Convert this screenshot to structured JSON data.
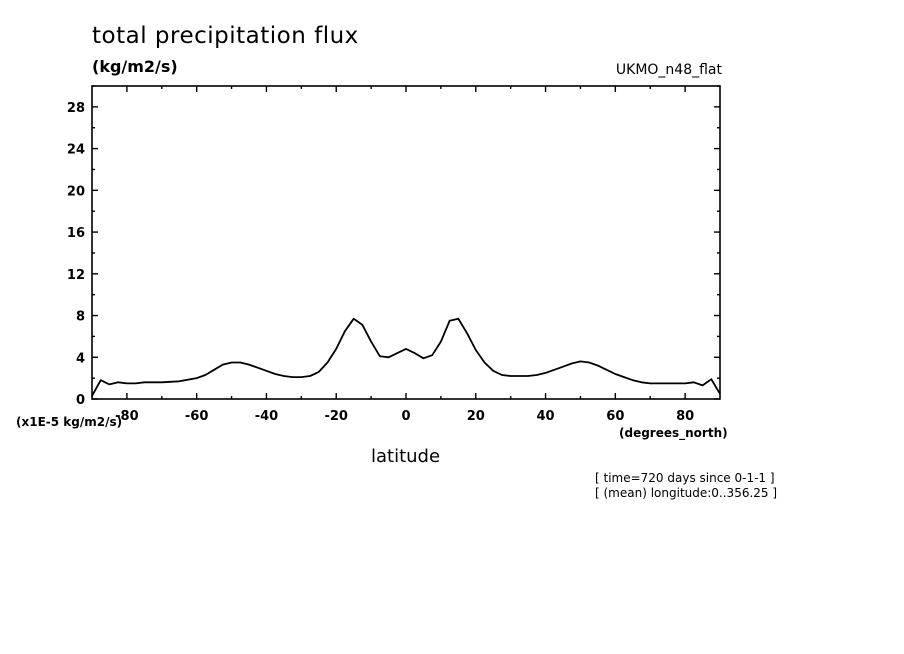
{
  "header": {
    "title": "total precipitation flux",
    "units": "(kg/m2/s)",
    "model": "UKMO_n48_flat"
  },
  "axes": {
    "y_scale_note": "(x1E-5 kg/m2/s)",
    "x_units": "(degrees_north)",
    "x_label": "latitude"
  },
  "info": {
    "line1": "[ time=720 days since 0-1-1 ]",
    "line2": "[ (mean) longitude:0..356.25 ]"
  },
  "colors": {
    "line": "#000000",
    "background": "#ffffff"
  },
  "chart_data": {
    "type": "line",
    "title": "total precipitation flux",
    "xlabel": "latitude",
    "ylabel": "(kg/m2/s)",
    "xlim": [
      -90,
      90
    ],
    "ylim": [
      0,
      30
    ],
    "x_ticks": [
      -80,
      -60,
      -40,
      -20,
      0,
      20,
      40,
      60,
      80
    ],
    "x_tick_labels": [
      "-80",
      "-60",
      "-40",
      "-20",
      "0",
      "20",
      "40",
      "60",
      "80"
    ],
    "y_ticks": [
      0,
      4,
      8,
      12,
      16,
      20,
      24,
      28
    ],
    "y_tick_labels": [
      "0",
      "4",
      "8",
      "12",
      "16",
      "20",
      "24",
      "28"
    ],
    "grid": false,
    "series": [
      {
        "x": [
          -90,
          -87.5,
          -85,
          -82.5,
          -80,
          -77.5,
          -75,
          -70,
          -65,
          -60,
          -57.5,
          -55,
          -52.5,
          -50,
          -47.5,
          -45,
          -42.5,
          -40,
          -37.5,
          -35,
          -32.5,
          -30,
          -27.5,
          -25,
          -22.5,
          -20,
          -17.5,
          -15,
          -12.5,
          -10,
          -7.5,
          -5,
          -2.5,
          0,
          2.5,
          5,
          7.5,
          10,
          12.5,
          15,
          17.5,
          20,
          22.5,
          25,
          27.5,
          30,
          32.5,
          35,
          37.5,
          40,
          42.5,
          45,
          47.5,
          50,
          52.5,
          55,
          57.5,
          60,
          62.5,
          65,
          67.5,
          70,
          75,
          77.5,
          80,
          82.5,
          85,
          87.5,
          90
        ],
        "y": [
          0.3,
          1.8,
          1.4,
          1.6,
          1.5,
          1.5,
          1.6,
          1.6,
          1.7,
          2.0,
          2.3,
          2.8,
          3.3,
          3.5,
          3.5,
          3.3,
          3.0,
          2.7,
          2.4,
          2.2,
          2.1,
          2.1,
          2.2,
          2.6,
          3.5,
          4.8,
          6.5,
          7.7,
          7.1,
          5.5,
          4.1,
          4.0,
          4.4,
          4.8,
          4.4,
          3.9,
          4.2,
          5.5,
          7.5,
          7.7,
          6.3,
          4.7,
          3.5,
          2.7,
          2.3,
          2.2,
          2.2,
          2.2,
          2.3,
          2.5,
          2.8,
          3.1,
          3.4,
          3.6,
          3.5,
          3.2,
          2.8,
          2.4,
          2.1,
          1.8,
          1.6,
          1.5,
          1.5,
          1.5,
          1.5,
          1.6,
          1.3,
          1.9,
          0.5
        ]
      }
    ]
  }
}
